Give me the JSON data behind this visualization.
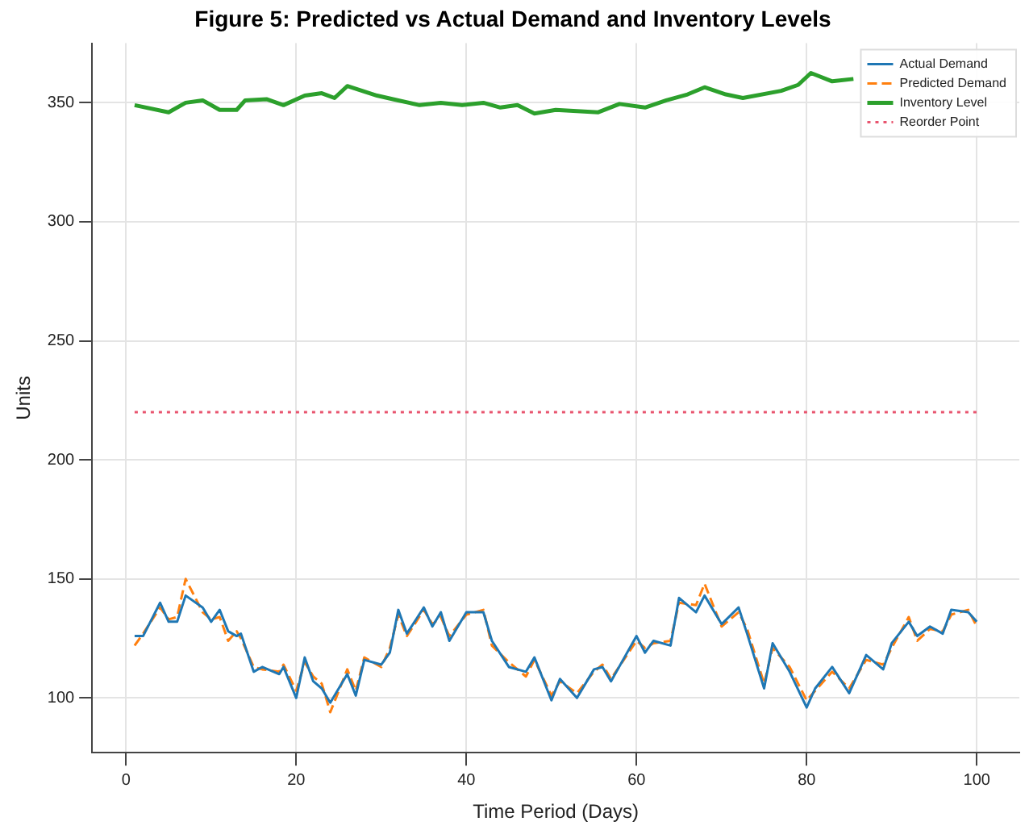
{
  "chart_data": {
    "type": "line",
    "title": "Figure 5: Predicted vs Actual Demand and Inventory Levels",
    "xlabel": "Time Period (Days)",
    "ylabel": "Units",
    "xlim": [
      -4,
      105
    ],
    "xticks": [
      0,
      20,
      40,
      60,
      80,
      100
    ],
    "ylim": [
      77,
      375
    ],
    "yticks": [
      100,
      150,
      200,
      250,
      300,
      350
    ],
    "grid": true,
    "legend": "top right",
    "marker": "none",
    "series": [
      {
        "name": "Actual Demand",
        "color": "#1f77b4",
        "line_style": "solid",
        "x": [
          1,
          2,
          4,
          5,
          6,
          7,
          9,
          10,
          11,
          12,
          13,
          13.5,
          15,
          16,
          18,
          18.5,
          20,
          21,
          22,
          23,
          24,
          26,
          27,
          28,
          30,
          31,
          32,
          33,
          35,
          36,
          37,
          38,
          40,
          42,
          43,
          45,
          47,
          48,
          50,
          51,
          53,
          55,
          56,
          57,
          60,
          61,
          62,
          64,
          65,
          67,
          68,
          70,
          72,
          73,
          75,
          76,
          78,
          80,
          81,
          83,
          85,
          87,
          89,
          90,
          92,
          93,
          94.5,
          96,
          97,
          99,
          100
        ],
        "values": [
          126,
          126,
          140,
          132,
          132,
          143,
          138,
          132,
          137,
          128,
          126,
          127,
          111,
          113,
          110,
          113,
          100,
          117,
          107,
          104,
          98,
          110,
          101,
          116,
          114,
          119,
          137,
          127,
          138,
          130,
          136,
          124,
          136,
          136,
          124,
          113,
          111,
          117,
          99,
          108,
          100,
          112,
          113,
          107,
          126,
          119,
          124,
          122,
          142,
          136,
          143,
          131,
          138,
          127,
          104,
          123,
          111,
          96,
          104,
          113,
          102,
          118,
          112,
          123,
          132,
          126,
          130,
          127,
          137,
          136,
          132
        ]
      },
      {
        "name": "Predicted Demand",
        "color": "#ff7f0e",
        "line_style": "dashed",
        "x": [
          1,
          2,
          4,
          5,
          6,
          7,
          9,
          10,
          11,
          12,
          13,
          13.5,
          15,
          16,
          18,
          18.5,
          20,
          21,
          22,
          23,
          24,
          26,
          27,
          28,
          30,
          31,
          32,
          33,
          35,
          36,
          37,
          38,
          40,
          42,
          43,
          45,
          47,
          48,
          50,
          51,
          53,
          55,
          56,
          57,
          60,
          61,
          62,
          64,
          65,
          67,
          68,
          70,
          72,
          73,
          75,
          76,
          78,
          80,
          81,
          83,
          85,
          87,
          89,
          90,
          92,
          93,
          94.5,
          96,
          97,
          99,
          100
        ],
        "values": [
          122,
          127,
          138,
          133,
          134,
          150,
          136,
          133,
          134,
          124,
          128,
          125,
          113,
          112,
          111,
          114,
          103,
          115,
          109,
          106,
          94,
          112,
          103,
          117,
          113,
          121,
          135,
          126,
          137,
          131,
          134,
          126,
          135,
          137,
          122,
          115,
          109,
          116,
          101,
          107,
          102,
          111,
          114,
          108,
          124,
          121,
          123,
          124,
          140,
          139,
          148,
          130,
          136,
          129,
          106,
          121,
          113,
          99,
          103,
          111,
          104,
          116,
          114,
          121,
          134,
          124,
          129,
          128,
          135,
          137,
          130
        ]
      },
      {
        "name": "Inventory Level",
        "color": "#2ca02c",
        "line_style": "solid",
        "x": [
          1,
          5,
          7,
          9,
          11,
          13,
          14,
          16.5,
          18.5,
          21,
          23,
          24.5,
          26,
          29.5,
          32,
          34.5,
          37,
          39.5,
          42,
          44,
          46,
          48,
          50.5,
          55.5,
          58,
          61,
          63.5,
          66,
          68,
          70.5,
          72.5,
          77,
          79,
          80.5,
          83,
          85.5
        ],
        "values": [
          349,
          346,
          350,
          351,
          347,
          347,
          351,
          351.5,
          349,
          353,
          354,
          352,
          357,
          353,
          351,
          349,
          350,
          349,
          350,
          348,
          349,
          345.5,
          347,
          346,
          349.5,
          348,
          351,
          353.5,
          356.5,
          353.5,
          352,
          355,
          357.5,
          362.5,
          359,
          360
        ]
      },
      {
        "name": "Reorder Point",
        "color": "#e8556f",
        "line_style": "dotted",
        "x": [
          1,
          100
        ],
        "values": [
          220,
          220
        ]
      }
    ]
  }
}
